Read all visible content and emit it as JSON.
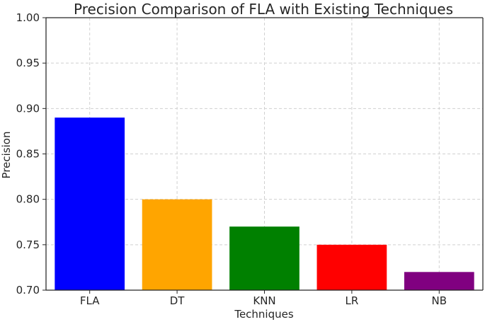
{
  "chart_data": {
    "type": "bar",
    "title": "Precision Comparison of FLA with Existing Techniques",
    "xlabel": "Techniques",
    "ylabel": "Precision",
    "categories": [
      "FLA",
      "DT",
      "KNN",
      "LR",
      "NB"
    ],
    "values": [
      0.89,
      0.8,
      0.77,
      0.75,
      0.72
    ],
    "colors": [
      "#0000ff",
      "#ffa500",
      "#008000",
      "#ff0000",
      "#800080"
    ],
    "ylim": [
      0.7,
      1.0
    ],
    "yticks": [
      "0.70",
      "0.75",
      "0.80",
      "0.85",
      "0.90",
      "0.95",
      "1.00"
    ],
    "grid": true,
    "legend": "none"
  }
}
